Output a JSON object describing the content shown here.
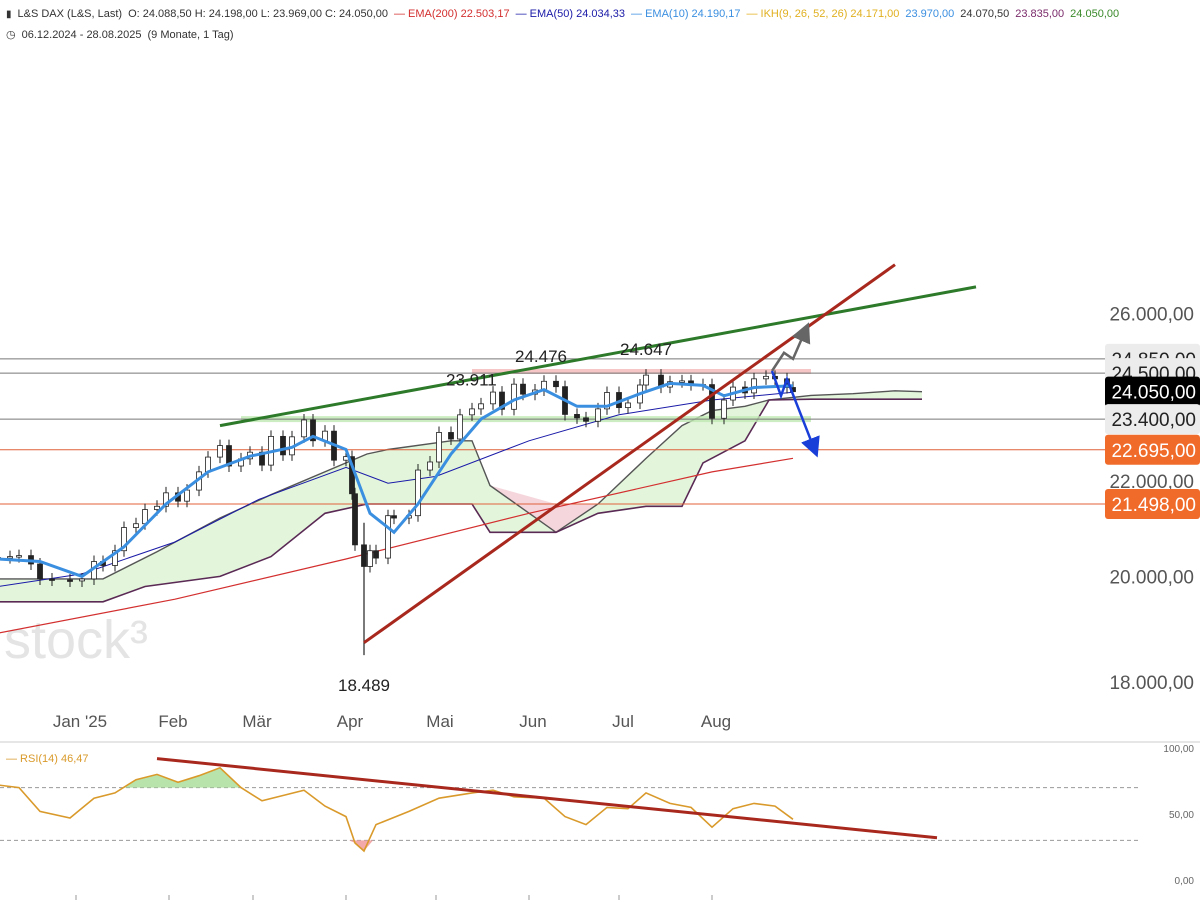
{
  "header": {
    "line1": {
      "icon": "chart-bars-icon",
      "instrument": "L&S DAX (L&S, Last)",
      "ohlc": "O: 24.088,50  H: 24.198,00  L: 23.969,00  C: 24.050,00",
      "indicators": [
        {
          "label": "EMA(200)",
          "value": "22.503,17",
          "color": "#d32f2f"
        },
        {
          "label": "EMA(50)",
          "value": "24.034,33",
          "color": "#1a1aa8"
        },
        {
          "label": "EMA(10)",
          "value": "24.190,17",
          "color": "#3b8fe0"
        },
        {
          "label": "IKH(9, 26, 52, 26)",
          "value": "24.171,00",
          "color": "#e0b020"
        }
      ],
      "ikh_values": [
        {
          "value": "23.970,00",
          "color": "#3b8fe0"
        },
        {
          "value": "24.070,50",
          "color": "#333333"
        },
        {
          "value": "23.835,00",
          "color": "#7a2a6a"
        },
        {
          "value": "24.050,00",
          "color": "#3a8a2a"
        }
      ]
    },
    "line2": {
      "icon": "clock-icon",
      "range": "06.12.2024 - 28.08.2025",
      "period": "(9 Monate, 1 Tag)"
    }
  },
  "watermark": "stock³",
  "chart_data": [
    {
      "type": "candlestick",
      "title": "L&S DAX (L&S, Last)",
      "x_labels": [
        "Jan '25",
        "Feb",
        "Mär",
        "Apr",
        "Mai",
        "Jun",
        "Jul",
        "Aug"
      ],
      "y_ticks": [
        "18.000,00",
        "20.000,00",
        "22.000,00",
        "26.000,00"
      ],
      "ylim": [
        17800,
        27200
      ],
      "date_range": [
        "2024-12-06",
        "2025-08-28"
      ],
      "last_close": "24.050,00",
      "annotations": [
        {
          "label": "23.911",
          "date": "2025-05-13",
          "value": 23911
        },
        {
          "label": "24.476",
          "date": "2025-06-05",
          "value": 24476
        },
        {
          "label": "24.647",
          "date": "2025-07-10",
          "value": 24647
        },
        {
          "label": "18.489",
          "date": "2025-04-07",
          "value": 18489
        }
      ],
      "price_boxes": [
        {
          "label": "24.850,00",
          "value": 24850,
          "bg": "#ececec",
          "fg": "#222222"
        },
        {
          "label": "24.500,00",
          "value": 24500,
          "bg": "#ececec",
          "fg": "#222222"
        },
        {
          "label": "24.050,00",
          "value": 24050,
          "bg": "#000000",
          "fg": "#ffffff"
        },
        {
          "label": "23.400,00",
          "value": 23400,
          "bg": "#ececec",
          "fg": "#222222"
        },
        {
          "label": "22.695,00",
          "value": 22695,
          "bg": "#f06a2a",
          "fg": "#ffffff"
        },
        {
          "label": "21.498,00",
          "value": 21498,
          "bg": "#f06a2a",
          "fg": "#ffffff"
        }
      ],
      "horizontal_lines": [
        {
          "value": 24850,
          "color": "#777777"
        },
        {
          "value": 24500,
          "color": "#777777"
        },
        {
          "value": 23400,
          "color": "#777777"
        },
        {
          "value": 22695,
          "color": "#e0603a"
        },
        {
          "value": 21498,
          "color": "#e0603a"
        }
      ],
      "zones": [
        {
          "from_date": "2025-05-13",
          "to_date": "2025-09-03",
          "low": 24480,
          "high": 24600,
          "color": "#f4b6b6"
        },
        {
          "from_date": "2025-02-25",
          "to_date": "2025-09-03",
          "low": 23330,
          "high": 23470,
          "color": "#bfe8b2"
        }
      ],
      "trendlines": [
        {
          "name": "green-resistance",
          "color": "#2d7a2a",
          "points": [
            [
              "2025-02-18",
              23250
            ],
            [
              "2025-10-28",
              26700
            ]
          ]
        },
        {
          "name": "red-support",
          "color": "#a8281e",
          "points": [
            [
              "2025-04-07",
              18720
            ],
            [
              "2025-10-01",
              27300
            ]
          ]
        }
      ],
      "scenario_arrows": [
        {
          "color": "#666666",
          "points": [
            [
              "2025-08-21",
              24550
            ],
            [
              "2025-08-25",
              25000
            ],
            [
              "2025-08-28",
              24850
            ],
            [
              "2025-09-01",
              25540
            ]
          ]
        },
        {
          "color": "#1a3fd8",
          "points": [
            [
              "2025-08-21",
              24550
            ],
            [
              "2025-08-24",
              23950
            ],
            [
              "2025-08-26",
              24350
            ],
            [
              "2025-09-04",
              22730
            ]
          ]
        }
      ],
      "close_series": [
        [
          "2024-12-06",
          20380
        ],
        [
          "2024-12-10",
          20400
        ],
        [
          "2024-12-13",
          20420
        ],
        [
          "2024-12-17",
          20250
        ],
        [
          "2024-12-20",
          19950
        ],
        [
          "2024-12-24",
          19930
        ],
        [
          "2024-12-30",
          19910
        ],
        [
          "2025-01-03",
          19950
        ],
        [
          "2025-01-07",
          20300
        ],
        [
          "2025-01-10",
          20220
        ],
        [
          "2025-01-14",
          20520
        ],
        [
          "2025-01-17",
          21000
        ],
        [
          "2025-01-21",
          21080
        ],
        [
          "2025-01-24",
          21380
        ],
        [
          "2025-01-28",
          21450
        ],
        [
          "2025-01-31",
          21740
        ],
        [
          "2025-02-04",
          21560
        ],
        [
          "2025-02-07",
          21800
        ],
        [
          "2025-02-11",
          22200
        ],
        [
          "2025-02-14",
          22530
        ],
        [
          "2025-02-18",
          22790
        ],
        [
          "2025-02-21",
          22330
        ],
        [
          "2025-02-25",
          22490
        ],
        [
          "2025-02-28",
          22640
        ],
        [
          "2025-03-04",
          22350
        ],
        [
          "2025-03-07",
          23000
        ],
        [
          "2025-03-11",
          22580
        ],
        [
          "2025-03-14",
          22990
        ],
        [
          "2025-03-18",
          23380
        ],
        [
          "2025-03-21",
          22900
        ],
        [
          "2025-03-25",
          23120
        ],
        [
          "2025-03-28",
          22460
        ],
        [
          "2025-04-01",
          22540
        ],
        [
          "2025-04-03",
          21720
        ],
        [
          "2025-04-04",
          20640
        ],
        [
          "2025-04-07",
          20200
        ],
        [
          "2025-04-09",
          20520
        ],
        [
          "2025-04-11",
          20370
        ],
        [
          "2025-04-15",
          21250
        ],
        [
          "2025-04-17",
          21200
        ],
        [
          "2025-04-22",
          21250
        ],
        [
          "2025-04-25",
          22240
        ],
        [
          "2025-04-29",
          22420
        ],
        [
          "2025-05-02",
          23090
        ],
        [
          "2025-05-06",
          22940
        ],
        [
          "2025-05-09",
          23500
        ],
        [
          "2025-05-13",
          23640
        ],
        [
          "2025-05-16",
          23760
        ],
        [
          "2025-05-20",
          24040
        ],
        [
          "2025-05-23",
          23630
        ],
        [
          "2025-05-27",
          24230
        ],
        [
          "2025-05-30",
          23990
        ],
        [
          "2025-06-03",
          24090
        ],
        [
          "2025-06-06",
          24300
        ],
        [
          "2025-06-10",
          24170
        ],
        [
          "2025-06-13",
          23510
        ],
        [
          "2025-06-17",
          23430
        ],
        [
          "2025-06-20",
          23350
        ],
        [
          "2025-06-24",
          23640
        ],
        [
          "2025-06-27",
          24030
        ],
        [
          "2025-07-01",
          23670
        ],
        [
          "2025-07-04",
          23780
        ],
        [
          "2025-07-08",
          24210
        ],
        [
          "2025-07-10",
          24450
        ],
        [
          "2025-07-15",
          24160
        ],
        [
          "2025-07-18",
          24290
        ],
        [
          "2025-07-22",
          24310
        ],
        [
          "2025-07-25",
          24220
        ],
        [
          "2025-07-29",
          24220
        ],
        [
          "2025-08-01",
          23420
        ],
        [
          "2025-08-05",
          23850
        ],
        [
          "2025-08-08",
          24160
        ],
        [
          "2025-08-12",
          24020
        ],
        [
          "2025-08-15",
          24360
        ],
        [
          "2025-08-19",
          24420
        ],
        [
          "2025-08-22",
          24360
        ],
        [
          "2025-08-26",
          24150
        ],
        [
          "2025-08-28",
          24050
        ]
      ],
      "ema10": [
        [
          "2024-12-06",
          20350
        ],
        [
          "2024-12-20",
          20300
        ],
        [
          "2025-01-03",
          20000
        ],
        [
          "2025-01-17",
          20600
        ],
        [
          "2025-01-31",
          21500
        ],
        [
          "2025-02-14",
          22200
        ],
        [
          "2025-02-28",
          22550
        ],
        [
          "2025-03-14",
          22750
        ],
        [
          "2025-03-21",
          23000
        ],
        [
          "2025-04-01",
          22700
        ],
        [
          "2025-04-09",
          21300
        ],
        [
          "2025-04-17",
          20900
        ],
        [
          "2025-04-25",
          21500
        ],
        [
          "2025-05-06",
          22600
        ],
        [
          "2025-05-16",
          23400
        ],
        [
          "2025-05-27",
          23850
        ],
        [
          "2025-06-06",
          24100
        ],
        [
          "2025-06-17",
          23700
        ],
        [
          "2025-06-27",
          23700
        ],
        [
          "2025-07-08",
          24000
        ],
        [
          "2025-07-18",
          24250
        ],
        [
          "2025-07-29",
          24200
        ],
        [
          "2025-08-05",
          23950
        ],
        [
          "2025-08-15",
          24150
        ],
        [
          "2025-08-28",
          24190
        ]
      ],
      "ema50": [
        [
          "2024-12-06",
          19800
        ],
        [
          "2025-01-03",
          20050
        ],
        [
          "2025-02-03",
          20700
        ],
        [
          "2025-03-03",
          21600
        ],
        [
          "2025-04-01",
          22300
        ],
        [
          "2025-04-15",
          21950
        ],
        [
          "2025-05-01",
          22100
        ],
        [
          "2025-06-01",
          22900
        ],
        [
          "2025-07-01",
          23500
        ],
        [
          "2025-08-01",
          23850
        ],
        [
          "2025-08-28",
          24034
        ]
      ],
      "ema200": [
        [
          "2024-12-06",
          18900
        ],
        [
          "2025-02-03",
          19550
        ],
        [
          "2025-04-01",
          20350
        ],
        [
          "2025-06-01",
          21300
        ],
        [
          "2025-08-01",
          22200
        ],
        [
          "2025-08-28",
          22503
        ]
      ],
      "ichimoku_upper": [
        [
          "2024-12-06",
          19950
        ],
        [
          "2025-01-10",
          19950
        ],
        [
          "2025-01-28",
          20500
        ],
        [
          "2025-02-18",
          21200
        ],
        [
          "2025-03-07",
          21700
        ],
        [
          "2025-04-01",
          22400
        ],
        [
          "2025-04-08",
          22600
        ],
        [
          "2025-04-15",
          22700
        ],
        [
          "2025-05-06",
          22900
        ],
        [
          "2025-05-13",
          22900
        ],
        [
          "2025-05-19",
          21900
        ],
        [
          "2025-06-10",
          20900
        ],
        [
          "2025-06-24",
          21500
        ],
        [
          "2025-07-10",
          22500
        ],
        [
          "2025-07-22",
          23250
        ],
        [
          "2025-08-01",
          23600
        ],
        [
          "2025-08-12",
          23700
        ],
        [
          "2025-08-20",
          23850
        ],
        [
          "2025-09-03",
          23960
        ],
        [
          "2025-09-17",
          24000
        ],
        [
          "2025-10-01",
          24070
        ],
        [
          "2025-10-10",
          24050
        ]
      ],
      "ichimoku_lower": [
        [
          "2024-12-06",
          19500
        ],
        [
          "2025-01-10",
          19500
        ],
        [
          "2025-01-24",
          19800
        ],
        [
          "2025-02-18",
          20000
        ],
        [
          "2025-03-07",
          20400
        ],
        [
          "2025-03-25",
          21300
        ],
        [
          "2025-04-08",
          21500
        ],
        [
          "2025-05-13",
          21500
        ],
        [
          "2025-05-19",
          20900
        ],
        [
          "2025-06-10",
          20900
        ],
        [
          "2025-06-24",
          21300
        ],
        [
          "2025-07-10",
          21450
        ],
        [
          "2025-07-22",
          21450
        ],
        [
          "2025-07-29",
          22400
        ],
        [
          "2025-08-12",
          22900
        ],
        [
          "2025-08-20",
          23850
        ],
        [
          "2025-09-03",
          23870
        ],
        [
          "2025-10-10",
          23870
        ]
      ]
    },
    {
      "type": "line",
      "title": "RSI(14)",
      "series": [
        {
          "name": "RSI(14)",
          "value_label": "46,47",
          "color": "#d99a2b"
        }
      ],
      "y_ticks": [
        "100,00",
        "50,00",
        "0,00"
      ],
      "ylim": [
        0,
        100
      ],
      "levels": [
        30,
        70
      ],
      "trendline": {
        "color": "#a8281e",
        "points": [
          [
            "2025-01-28",
            92
          ],
          [
            "2025-10-15",
            32
          ]
        ]
      },
      "values": [
        [
          "2024-12-06",
          72
        ],
        [
          "2024-12-13",
          70
        ],
        [
          "2024-12-20",
          52
        ],
        [
          "2024-12-30",
          47
        ],
        [
          "2025-01-07",
          62
        ],
        [
          "2025-01-14",
          66
        ],
        [
          "2025-01-21",
          76
        ],
        [
          "2025-01-28",
          80
        ],
        [
          "2025-02-04",
          74
        ],
        [
          "2025-02-11",
          79
        ],
        [
          "2025-02-18",
          85
        ],
        [
          "2025-02-25",
          70
        ],
        [
          "2025-03-04",
          60
        ],
        [
          "2025-03-11",
          64
        ],
        [
          "2025-03-18",
          68
        ],
        [
          "2025-03-25",
          56
        ],
        [
          "2025-04-01",
          48
        ],
        [
          "2025-04-04",
          28
        ],
        [
          "2025-04-07",
          22
        ],
        [
          "2025-04-11",
          42
        ],
        [
          "2025-04-22",
          52
        ],
        [
          "2025-05-02",
          62
        ],
        [
          "2025-05-13",
          66
        ],
        [
          "2025-05-20",
          68
        ],
        [
          "2025-05-27",
          63
        ],
        [
          "2025-06-06",
          62
        ],
        [
          "2025-06-13",
          48
        ],
        [
          "2025-06-20",
          42
        ],
        [
          "2025-06-27",
          55
        ],
        [
          "2025-07-04",
          54
        ],
        [
          "2025-07-10",
          66
        ],
        [
          "2025-07-18",
          58
        ],
        [
          "2025-07-25",
          55
        ],
        [
          "2025-08-01",
          40
        ],
        [
          "2025-08-08",
          54
        ],
        [
          "2025-08-15",
          58
        ],
        [
          "2025-08-22",
          56
        ],
        [
          "2025-08-28",
          46
        ]
      ]
    }
  ]
}
